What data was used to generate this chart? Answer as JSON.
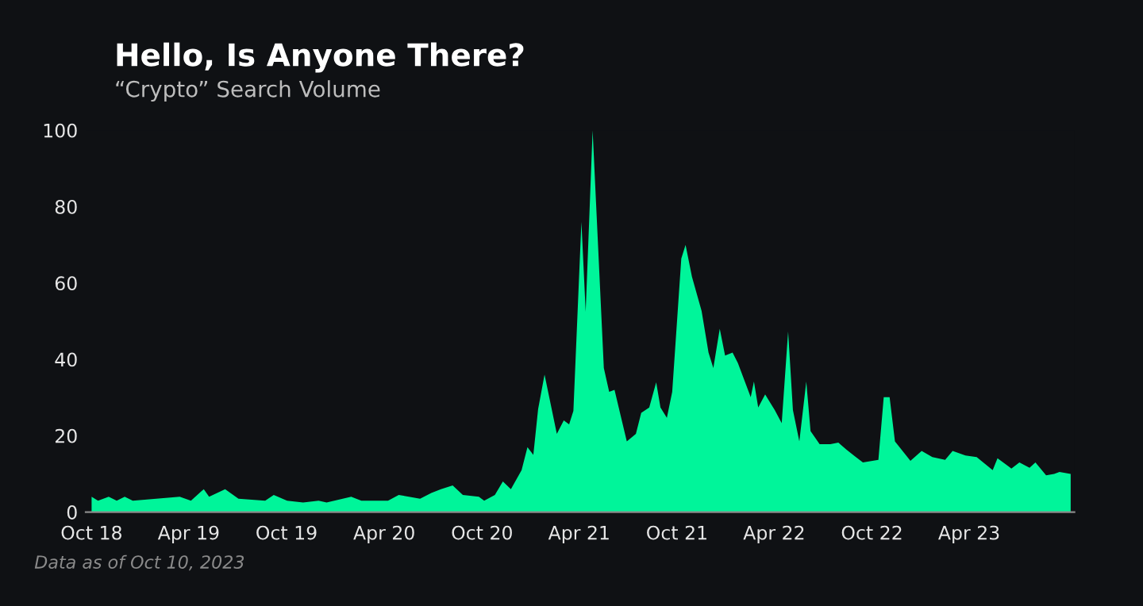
{
  "chart_data": {
    "type": "area",
    "title": "Hello, Is Anyone There?",
    "subtitle": "“Crypto” Search Volume",
    "annotations": [
      "Data as of Oct 10, 2023"
    ],
    "x": [
      "2018-10-01",
      "2018-10-13",
      "2018-11-02",
      "2018-11-17",
      "2018-12-02",
      "2018-12-17",
      "2019-03-15",
      "2019-04-05",
      "2019-04-29",
      "2019-05-09",
      "2019-06-08",
      "2019-07-03",
      "2019-08-22",
      "2019-09-07",
      "2019-10-02",
      "2019-11-01",
      "2019-11-30",
      "2019-12-15",
      "2020-01-30",
      "2020-02-18",
      "2020-04-08",
      "2020-04-28",
      "2020-06-07",
      "2020-06-28",
      "2020-07-16",
      "2020-08-07",
      "2020-08-26",
      "2020-09-25",
      "2020-10-05",
      "2020-10-25",
      "2020-11-09",
      "2020-11-24",
      "2020-12-14",
      "2020-12-25",
      "2021-01-05",
      "2021-01-14",
      "2021-01-26",
      "2021-02-18",
      "2021-03-03",
      "2021-03-13",
      "2021-03-21",
      "2021-04-05",
      "2021-04-13",
      "2021-04-26",
      "2021-05-17",
      "2021-05-27",
      "2021-06-06",
      "2021-06-29",
      "2021-07-16",
      "2021-07-26",
      "2021-08-10",
      "2021-08-23",
      "2021-08-31",
      "2021-09-12",
      "2021-09-22",
      "2021-10-09",
      "2021-10-17",
      "2021-10-29",
      "2021-11-16",
      "2021-11-29",
      "2021-12-08",
      "2021-12-20",
      "2021-12-30",
      "2022-01-13",
      "2022-01-23",
      "2022-02-16",
      "2022-02-22",
      "2022-03-02",
      "2022-03-15",
      "2022-04-02",
      "2022-04-15",
      "2022-04-27",
      "2022-05-06",
      "2022-05-18",
      "2022-05-31",
      "2022-06-08",
      "2022-06-25",
      "2022-07-15",
      "2022-07-30",
      "2022-08-14",
      "2022-08-29",
      "2022-09-14",
      "2022-10-13",
      "2022-10-23",
      "2022-11-03",
      "2022-11-13",
      "2022-12-12",
      "2023-01-02",
      "2023-01-22",
      "2023-02-15",
      "2023-03-01",
      "2023-03-25",
      "2023-04-15",
      "2023-05-15",
      "2023-05-24",
      "2023-06-19",
      "2023-07-04",
      "2023-07-23",
      "2023-08-03",
      "2023-08-23",
      "2023-09-07",
      "2023-09-17",
      "2023-10-08"
    ],
    "series": [
      {
        "color": "#00f59a",
        "values": [
          4,
          3,
          4,
          3,
          4,
          3,
          4,
          3,
          6,
          4,
          6,
          3.5,
          3,
          4.5,
          3,
          2.5,
          3,
          2.5,
          4,
          3,
          3,
          4.5,
          3.5,
          5,
          6,
          7,
          4.5,
          4,
          3,
          4.5,
          8,
          6,
          11,
          17,
          15,
          27,
          36,
          20.5,
          24,
          23,
          26.5,
          76,
          52.5,
          100,
          37.7,
          31.5,
          32,
          18.5,
          20.5,
          26,
          27.4,
          34,
          27.4,
          24.7,
          31.5,
          66.4,
          70,
          61.6,
          52.7,
          41.8,
          37.7,
          48,
          41,
          41.8,
          39,
          30.1,
          34.2,
          27.4,
          30.8,
          26.7,
          23.3,
          47.3,
          26.7,
          18.5,
          34.2,
          21.2,
          17.8,
          17.8,
          18.2,
          16.4,
          14.7,
          13,
          13.7,
          30.1,
          30.1,
          18.5,
          13.4,
          16,
          14.4,
          13.7,
          16,
          14.8,
          14.4,
          11,
          14.1,
          11.4,
          13,
          11.6,
          13,
          9.6,
          10,
          10.5,
          10
        ]
      }
    ],
    "xlim": [
      "2018-09-20",
      "2023-10-15"
    ],
    "xticks": [
      {
        "value": "2018-10-01",
        "label": "Oct 18"
      },
      {
        "value": "2019-04-01",
        "label": "Apr 19"
      },
      {
        "value": "2019-10-01",
        "label": "Oct 19"
      },
      {
        "value": "2020-04-01",
        "label": "Apr 20"
      },
      {
        "value": "2020-10-01",
        "label": "Oct 20"
      },
      {
        "value": "2021-04-01",
        "label": "Apr 21"
      },
      {
        "value": "2021-10-01",
        "label": "Oct 21"
      },
      {
        "value": "2022-04-01",
        "label": "Apr 22"
      },
      {
        "value": "2022-10-01",
        "label": "Oct 22"
      },
      {
        "value": "2023-04-01",
        "label": "Apr 23"
      }
    ],
    "ylim": [
      0,
      100
    ],
    "yticks": [
      0,
      20,
      40,
      60,
      80,
      100
    ]
  }
}
